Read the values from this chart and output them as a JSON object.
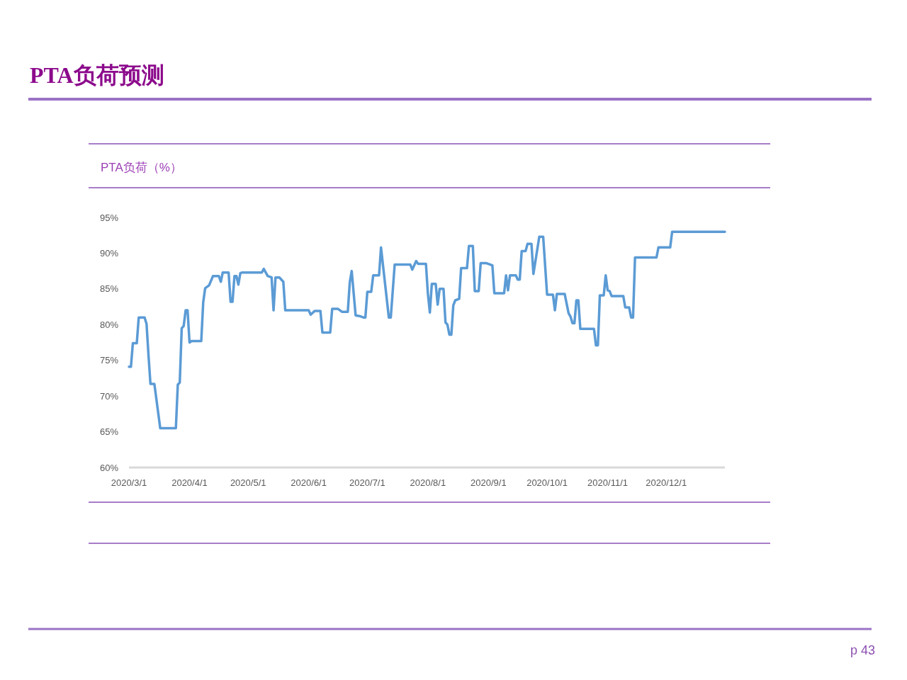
{
  "chart_data": {
    "type": "line",
    "title": "PTA负荷预测",
    "subtitle": "PTA负荷（%）",
    "annotations": [
      "p 43"
    ],
    "x": [
      "2020-03-01",
      "2020-03-02",
      "2020-03-03",
      "2020-03-05",
      "2020-03-06",
      "2020-03-09",
      "2020-03-10",
      "2020-03-11",
      "2020-03-12",
      "2020-03-14",
      "2020-03-17",
      "2020-03-25",
      "2020-03-26",
      "2020-03-27",
      "2020-03-28",
      "2020-03-29",
      "2020-03-30",
      "2020-03-31",
      "2020-04-01",
      "2020-04-02",
      "2020-04-07",
      "2020-04-08",
      "2020-04-09",
      "2020-04-11",
      "2020-04-13",
      "2020-04-16",
      "2020-04-17",
      "2020-04-18",
      "2020-04-21",
      "2020-04-22",
      "2020-04-23",
      "2020-04-24",
      "2020-04-25",
      "2020-04-26",
      "2020-04-27",
      "2020-04-28",
      "2020-05-08",
      "2020-05-09",
      "2020-05-10",
      "2020-05-11",
      "2020-05-13",
      "2020-05-14",
      "2020-05-15",
      "2020-05-17",
      "2020-05-19",
      "2020-05-20",
      "2020-06-01",
      "2020-06-02",
      "2020-06-04",
      "2020-06-07",
      "2020-06-08",
      "2020-06-12",
      "2020-06-13",
      "2020-06-16",
      "2020-06-18",
      "2020-06-21",
      "2020-06-22",
      "2020-06-23",
      "2020-06-25",
      "2020-06-27",
      "2020-06-29",
      "2020-06-30",
      "2020-07-01",
      "2020-07-03",
      "2020-07-04",
      "2020-07-07",
      "2020-07-08",
      "2020-07-12",
      "2020-07-13",
      "2020-07-15",
      "2020-07-23",
      "2020-07-24",
      "2020-07-26",
      "2020-07-27",
      "2020-07-31",
      "2020-08-01",
      "2020-08-02",
      "2020-08-03",
      "2020-08-05",
      "2020-08-06",
      "2020-08-07",
      "2020-08-09",
      "2020-08-10",
      "2020-08-11",
      "2020-08-12",
      "2020-08-13",
      "2020-08-14",
      "2020-08-15",
      "2020-08-17",
      "2020-08-18",
      "2020-08-21",
      "2020-08-22",
      "2020-08-24",
      "2020-08-25",
      "2020-08-27",
      "2020-08-28",
      "2020-08-31",
      "2020-09-03",
      "2020-09-04",
      "2020-09-09",
      "2020-09-10",
      "2020-09-11",
      "2020-09-12",
      "2020-09-15",
      "2020-09-16",
      "2020-09-17",
      "2020-09-18",
      "2020-09-20",
      "2020-09-21",
      "2020-09-23",
      "2020-09-24",
      "2020-09-27",
      "2020-09-29",
      "2020-10-01",
      "2020-10-04",
      "2020-10-05",
      "2020-10-06",
      "2020-10-10",
      "2020-10-12",
      "2020-10-13",
      "2020-10-14",
      "2020-10-15",
      "2020-10-16",
      "2020-10-17",
      "2020-10-18",
      "2020-10-25",
      "2020-10-26",
      "2020-10-27",
      "2020-10-28",
      "2020-10-30",
      "2020-10-31",
      "2020-11-01",
      "2020-11-02",
      "2020-11-03",
      "2020-11-09",
      "2020-11-10",
      "2020-11-12",
      "2020-11-13",
      "2020-11-14",
      "2020-11-15",
      "2020-11-26",
      "2020-11-27",
      "2020-12-03",
      "2020-12-04",
      "2020-12-31"
    ],
    "series": [
      {
        "color": "#5b9bd5",
        "values": [
          74.1,
          74.1,
          77.4,
          77.4,
          81.0,
          81.0,
          80.1,
          75.7,
          71.7,
          71.7,
          65.5,
          65.5,
          71.6,
          71.9,
          79.5,
          79.8,
          82.0,
          82.0,
          77.5,
          77.7,
          77.7,
          83.1,
          85.1,
          85.5,
          86.8,
          86.8,
          86.0,
          87.3,
          87.3,
          83.2,
          83.2,
          86.8,
          86.8,
          85.6,
          87.2,
          87.3,
          87.3,
          87.8,
          87.3,
          86.8,
          86.6,
          82.0,
          86.6,
          86.6,
          86.0,
          82.0,
          82.0,
          81.4,
          81.9,
          81.9,
          78.9,
          78.9,
          82.2,
          82.2,
          81.8,
          81.8,
          85.9,
          87.5,
          81.3,
          81.2,
          81.0,
          81.0,
          84.6,
          84.6,
          86.9,
          86.9,
          90.8,
          81.0,
          81.0,
          88.4,
          88.4,
          87.7,
          88.9,
          88.5,
          88.5,
          84.3,
          81.7,
          85.7,
          85.7,
          82.8,
          85.0,
          85.0,
          80.3,
          80.0,
          78.6,
          78.6,
          82.7,
          83.4,
          83.6,
          87.9,
          87.9,
          91.0,
          91.0,
          84.7,
          84.7,
          88.6,
          88.6,
          88.3,
          84.4,
          84.4,
          86.9,
          84.8,
          86.9,
          86.9,
          86.3,
          86.3,
          90.3,
          90.3,
          91.3,
          91.3,
          87.1,
          92.3,
          92.3,
          84.2,
          84.2,
          82.0,
          84.3,
          84.3,
          81.6,
          81.1,
          80.2,
          80.2,
          83.4,
          83.4,
          79.4,
          79.4,
          77.1,
          77.1,
          84.1,
          84.1,
          86.9,
          84.8,
          84.7,
          84.0,
          84.0,
          82.4,
          82.4,
          81.0,
          81.0,
          89.4,
          89.4,
          90.8,
          90.8,
          93.0,
          93.0
        ]
      }
    ],
    "xlim": [
      "2020-03-01",
      "2020-12-31"
    ],
    "xticks": [
      {
        "value": "2020-03-01",
        "label": "2020/3/1"
      },
      {
        "value": "2020-04-01",
        "label": "2020/4/1"
      },
      {
        "value": "2020-05-01",
        "label": "2020/5/1"
      },
      {
        "value": "2020-06-01",
        "label": "2020/6/1"
      },
      {
        "value": "2020-07-01",
        "label": "2020/7/1"
      },
      {
        "value": "2020-08-01",
        "label": "2020/8/1"
      },
      {
        "value": "2020-09-01",
        "label": "2020/9/1"
      },
      {
        "value": "2020-10-01",
        "label": "2020/10/1"
      },
      {
        "value": "2020-11-01",
        "label": "2020/11/1"
      },
      {
        "value": "2020-12-01",
        "label": "2020/12/1"
      }
    ],
    "ylim": [
      60,
      95
    ],
    "yticks": [
      {
        "value": 60,
        "label": "60%"
      },
      {
        "value": 65,
        "label": "65%"
      },
      {
        "value": 70,
        "label": "70%"
      },
      {
        "value": 75,
        "label": "75%"
      },
      {
        "value": 80,
        "label": "80%"
      },
      {
        "value": 85,
        "label": "85%"
      },
      {
        "value": 90,
        "label": "90%"
      },
      {
        "value": 95,
        "label": "95%"
      }
    ],
    "line_style": "solid"
  }
}
